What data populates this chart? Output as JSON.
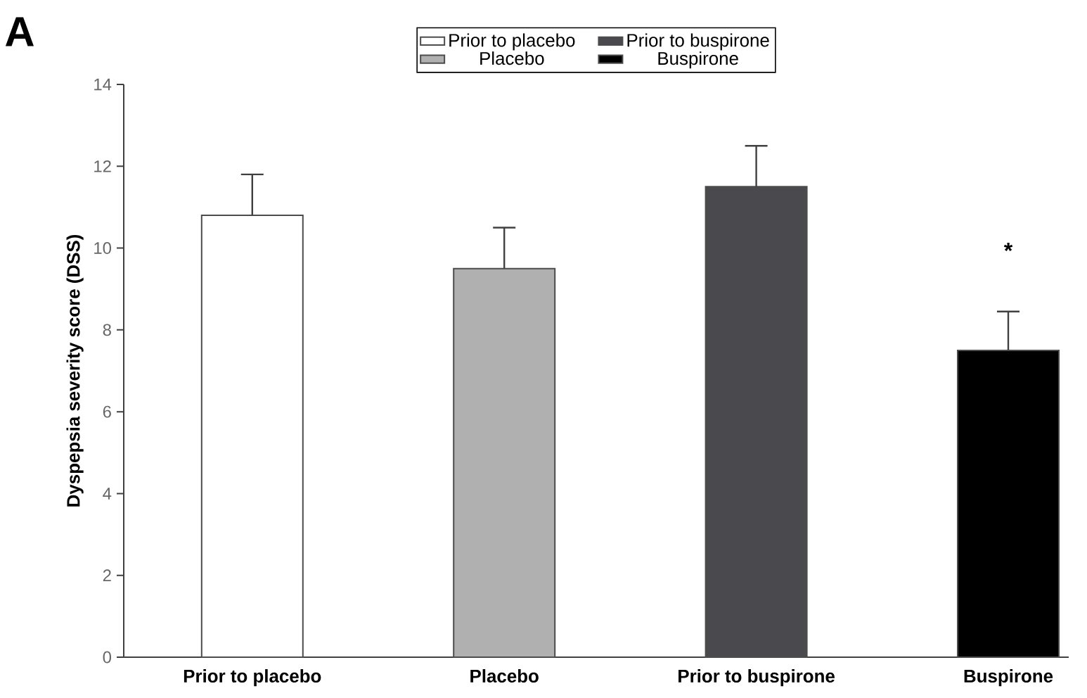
{
  "chart_data": {
    "type": "bar",
    "ylabel": "Dyspepsia severity score (DSS)",
    "categories": [
      "Prior to placebo",
      "Placebo",
      "Prior to buspirone",
      "Buspirone"
    ],
    "series": [
      {
        "name": "Prior to placebo",
        "color": "#ffffff",
        "values": [
          10.8,
          null,
          null,
          null
        ],
        "errors": [
          1.0,
          null,
          null,
          null
        ]
      },
      {
        "name": "Placebo",
        "color": "#b0b0b0",
        "values": [
          null,
          9.5,
          null,
          null
        ],
        "errors": [
          null,
          1.0,
          null,
          null
        ]
      },
      {
        "name": "Prior to buspirone",
        "color": "#4a4a4e",
        "values": [
          null,
          null,
          11.5,
          null
        ],
        "errors": [
          null,
          null,
          1.0,
          null
        ]
      },
      {
        "name": "Buspirone",
        "color": "#000000",
        "values": [
          null,
          null,
          null,
          7.5
        ],
        "errors": [
          null,
          null,
          null,
          0.95
        ]
      }
    ],
    "ylim": [
      0,
      14
    ],
    "yticks": [
      0,
      2,
      4,
      6,
      8,
      10,
      12,
      14
    ],
    "grid": false,
    "legend": "top",
    "annotations": [
      "A",
      "*"
    ]
  }
}
